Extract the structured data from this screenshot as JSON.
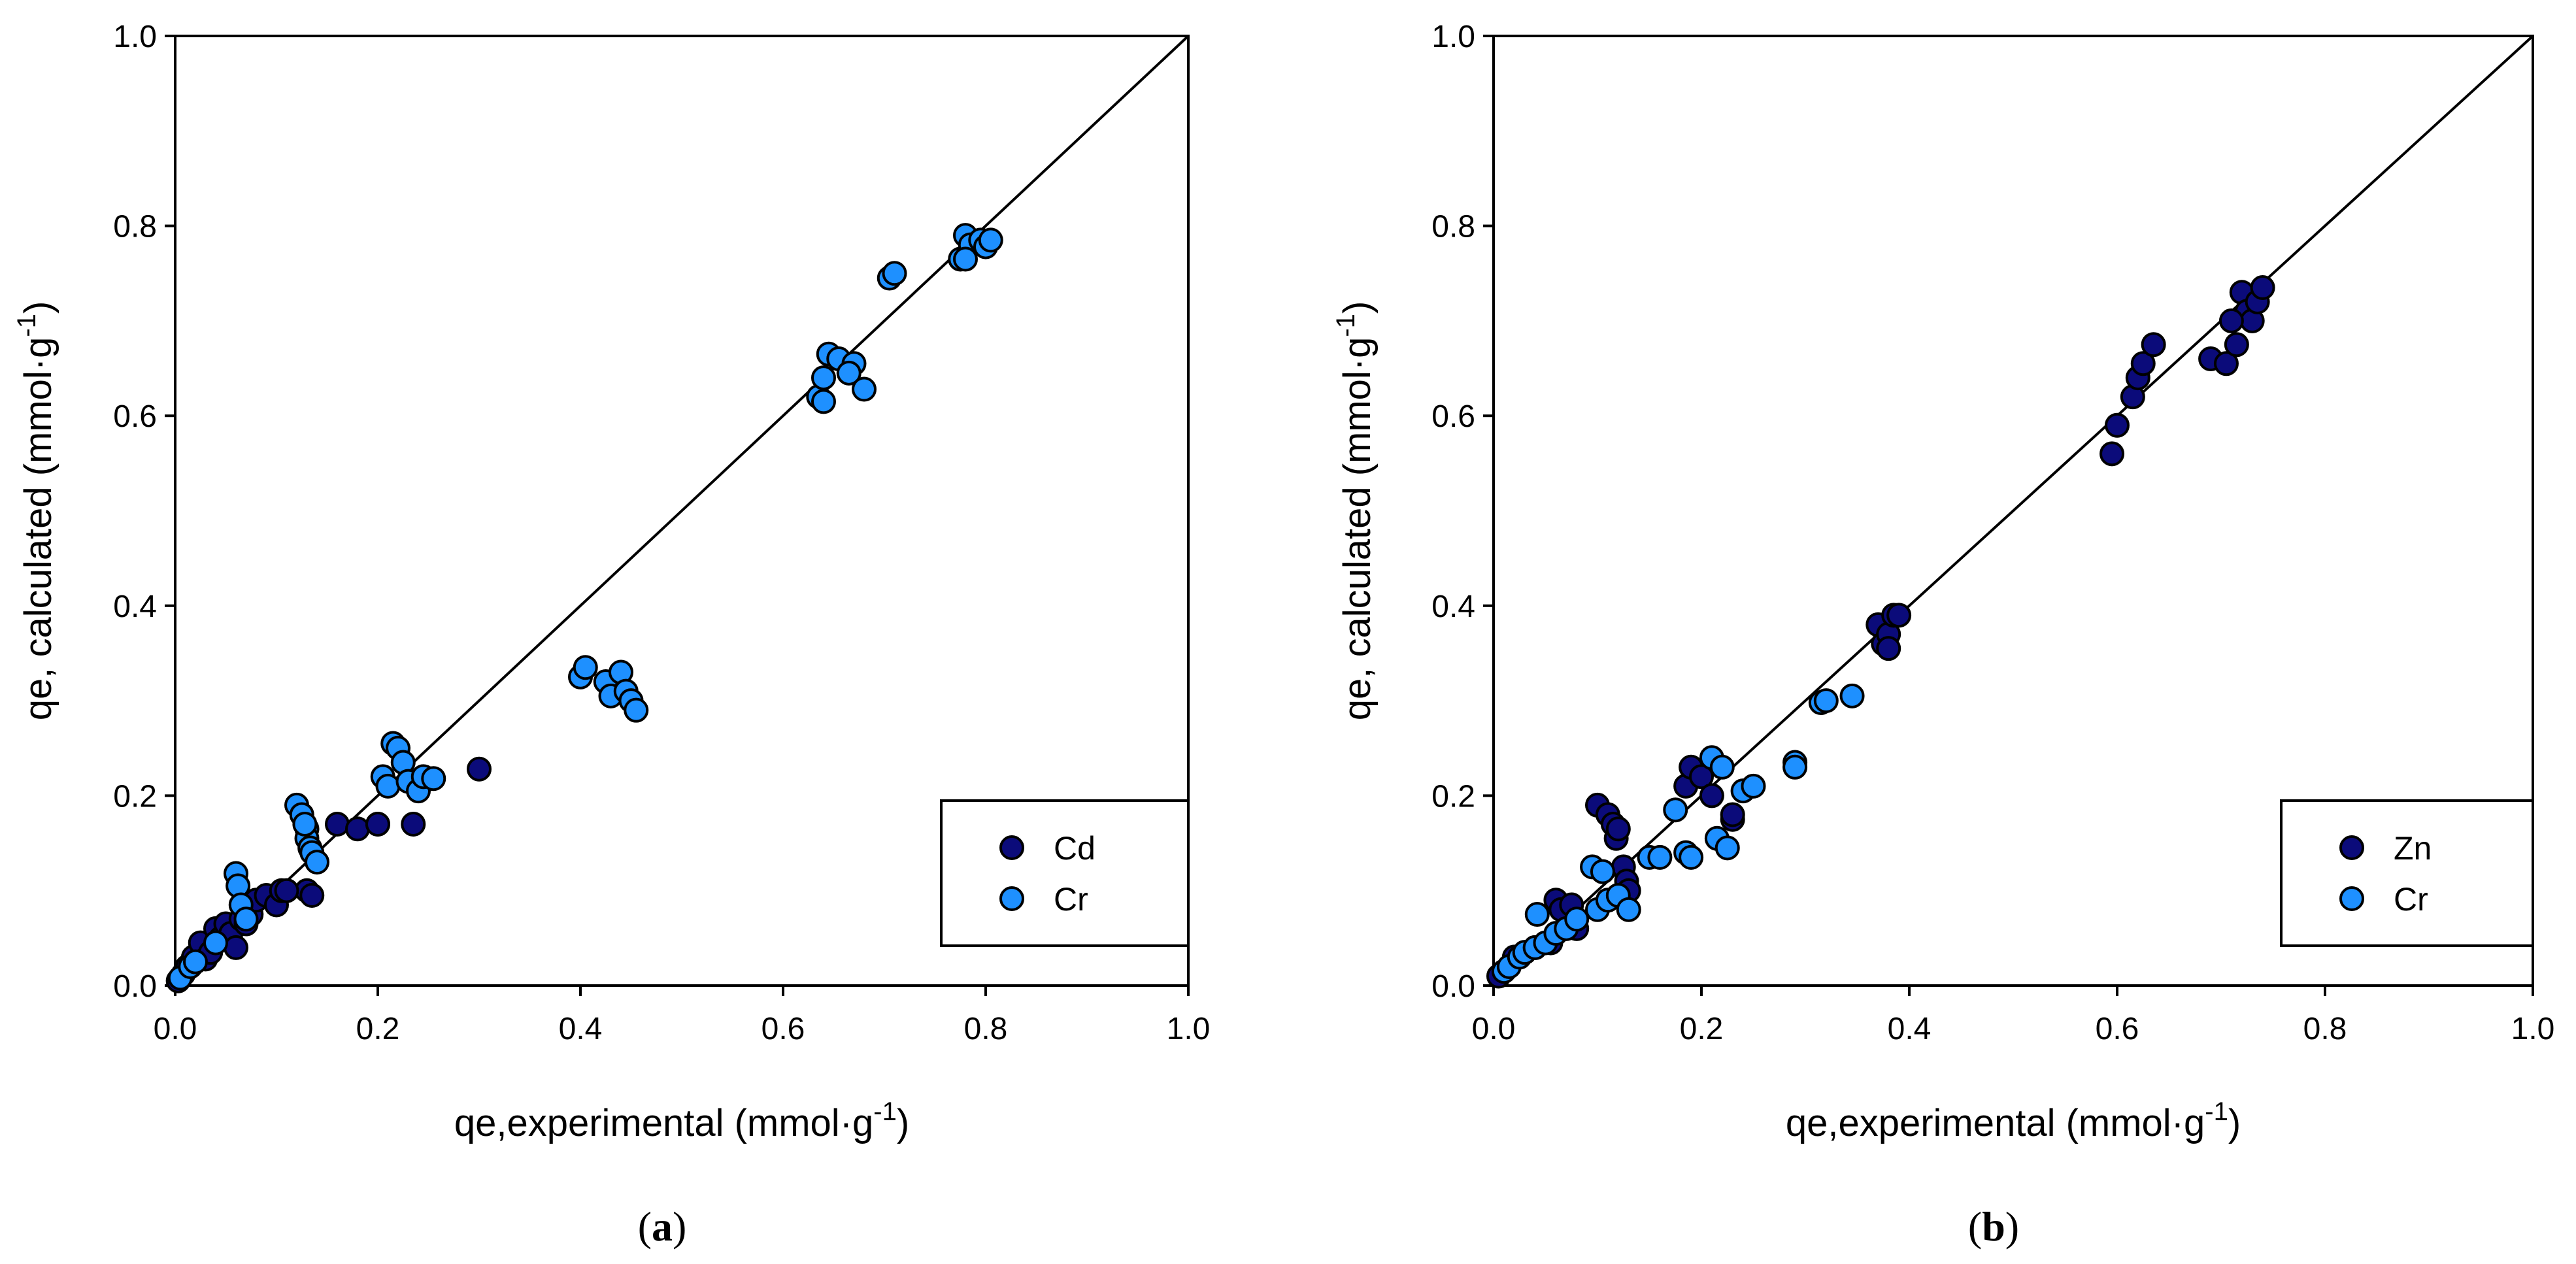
{
  "chart_data": [
    {
      "type": "scatter",
      "panel": "a",
      "caption": {
        "open": "(",
        "letter": "a",
        "close": ")"
      },
      "xlabel": {
        "main": "qe,experimental (mmol·g",
        "sup": "-1",
        "tail": ")"
      },
      "ylabel": {
        "main": "qe, calculated (mmol·g",
        "sup": "-1",
        "tail": ")"
      },
      "xlim": [
        0.0,
        1.0
      ],
      "ylim": [
        0.0,
        1.0
      ],
      "xticks": [
        "0.0",
        "0.2",
        "0.4",
        "0.6",
        "0.8",
        "1.0"
      ],
      "yticks": [
        "0.0",
        "0.2",
        "0.4",
        "0.6",
        "0.8",
        "1.0"
      ],
      "reference_line": "y = x",
      "legend_position": "bottom-right",
      "series": [
        {
          "name": "Cd",
          "color": "#0b0b7a",
          "x": [
            0.003,
            0.008,
            0.012,
            0.018,
            0.025,
            0.03,
            0.035,
            0.04,
            0.045,
            0.05,
            0.055,
            0.06,
            0.065,
            0.07,
            0.075,
            0.08,
            0.09,
            0.1,
            0.105,
            0.13,
            0.135,
            0.16,
            0.18,
            0.2,
            0.235,
            0.3,
            0.25,
            0.11,
            0.2
          ],
          "y": [
            0.005,
            0.012,
            0.02,
            0.03,
            0.045,
            0.028,
            0.035,
            0.06,
            0.05,
            0.065,
            0.055,
            0.04,
            0.07,
            0.065,
            0.075,
            0.09,
            0.095,
            0.085,
            0.1,
            0.1,
            0.095,
            0.17,
            0.165,
            0.17,
            0.17,
            0.228,
            0.218,
            0.1,
            0.17
          ]
        },
        {
          "name": "Cr",
          "color": "#1e90ff",
          "x": [
            0.005,
            0.015,
            0.02,
            0.04,
            0.06,
            0.062,
            0.065,
            0.07,
            0.12,
            0.125,
            0.13,
            0.13,
            0.133,
            0.135,
            0.14,
            0.128,
            0.215,
            0.22,
            0.205,
            0.21,
            0.225,
            0.23,
            0.24,
            0.245,
            0.255,
            0.4,
            0.405,
            0.425,
            0.43,
            0.44,
            0.445,
            0.45,
            0.455,
            0.635,
            0.64,
            0.645,
            0.64,
            0.655,
            0.67,
            0.665,
            0.68,
            0.705,
            0.71,
            0.775,
            0.78,
            0.785,
            0.795,
            0.8,
            0.805,
            0.78
          ],
          "y": [
            0.008,
            0.02,
            0.025,
            0.045,
            0.118,
            0.105,
            0.085,
            0.07,
            0.19,
            0.18,
            0.165,
            0.155,
            0.145,
            0.14,
            0.13,
            0.17,
            0.255,
            0.25,
            0.22,
            0.21,
            0.235,
            0.215,
            0.205,
            0.22,
            0.218,
            0.325,
            0.335,
            0.32,
            0.305,
            0.33,
            0.31,
            0.3,
            0.29,
            0.62,
            0.64,
            0.665,
            0.615,
            0.66,
            0.655,
            0.645,
            0.628,
            0.745,
            0.75,
            0.765,
            0.79,
            0.78,
            0.785,
            0.778,
            0.785,
            0.765
          ]
        }
      ]
    },
    {
      "type": "scatter",
      "panel": "b",
      "caption": {
        "open": "(",
        "letter": "b",
        "close": ")"
      },
      "xlabel": {
        "main": "qe,experimental (mmol·g",
        "sup": "-1",
        "tail": ")"
      },
      "ylabel": {
        "main": "qe, calculated (mmol·g",
        "sup": "-1",
        "tail": ")"
      },
      "xlim": [
        0.0,
        1.0
      ],
      "ylim": [
        0.0,
        1.0
      ],
      "xticks": [
        "0.0",
        "0.2",
        "0.4",
        "0.6",
        "0.8",
        "1.0"
      ],
      "yticks": [
        "0.0",
        "0.2",
        "0.4",
        "0.6",
        "0.8",
        "1.0"
      ],
      "reference_line": "y = x",
      "legend_position": "bottom-right",
      "series": [
        {
          "name": "Zn",
          "color": "#0b0b7a",
          "x": [
            0.005,
            0.02,
            0.04,
            0.055,
            0.06,
            0.065,
            0.075,
            0.08,
            0.1,
            0.11,
            0.115,
            0.118,
            0.12,
            0.125,
            0.128,
            0.13,
            0.185,
            0.19,
            0.2,
            0.21,
            0.23,
            0.23,
            0.37,
            0.375,
            0.38,
            0.385,
            0.39,
            0.38,
            0.595,
            0.6,
            0.615,
            0.62,
            0.625,
            0.635,
            0.69,
            0.705,
            0.715,
            0.72,
            0.725,
            0.73,
            0.735,
            0.74,
            0.71
          ],
          "y": [
            0.01,
            0.03,
            0.04,
            0.045,
            0.09,
            0.08,
            0.085,
            0.06,
            0.19,
            0.18,
            0.17,
            0.155,
            0.165,
            0.125,
            0.11,
            0.1,
            0.21,
            0.23,
            0.22,
            0.2,
            0.175,
            0.18,
            0.38,
            0.36,
            0.37,
            0.39,
            0.39,
            0.355,
            0.56,
            0.59,
            0.62,
            0.64,
            0.655,
            0.675,
            0.66,
            0.655,
            0.675,
            0.73,
            0.71,
            0.7,
            0.72,
            0.735,
            0.7
          ]
        },
        {
          "name": "Cr",
          "color": "#1e90ff",
          "x": [
            0.01,
            0.015,
            0.025,
            0.03,
            0.04,
            0.042,
            0.05,
            0.06,
            0.07,
            0.08,
            0.095,
            0.1,
            0.105,
            0.11,
            0.12,
            0.13,
            0.15,
            0.16,
            0.175,
            0.185,
            0.19,
            0.21,
            0.215,
            0.22,
            0.225,
            0.24,
            0.25,
            0.29,
            0.29,
            0.315,
            0.32,
            0.345
          ],
          "y": [
            0.015,
            0.02,
            0.03,
            0.035,
            0.04,
            0.075,
            0.045,
            0.055,
            0.06,
            0.07,
            0.125,
            0.08,
            0.12,
            0.09,
            0.095,
            0.08,
            0.135,
            0.135,
            0.185,
            0.14,
            0.135,
            0.24,
            0.155,
            0.23,
            0.145,
            0.205,
            0.21,
            0.235,
            0.23,
            0.298,
            0.3,
            0.305
          ]
        }
      ]
    }
  ]
}
